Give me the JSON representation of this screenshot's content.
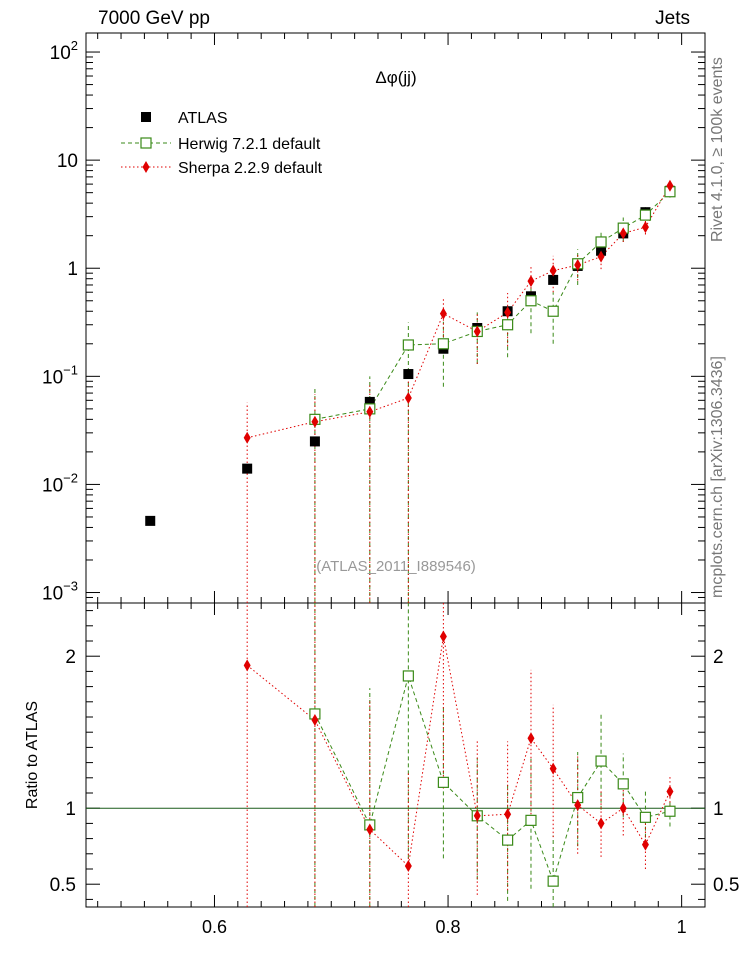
{
  "header": {
    "left": "7000 GeV pp",
    "right": "Jets"
  },
  "side_labels": {
    "top": "Rivet 4.1.0, ≥ 100k events",
    "bottom": "mcplots.cern.ch [arXiv:1306.3436]"
  },
  "colors": {
    "data": "#000000",
    "herwig": "#3a8a18",
    "sherpa": "#e00000",
    "reference": "#1a5c1a",
    "watermark": "#999999"
  },
  "chart_data": {
    "type": "scatter",
    "title": "Δφ(jj)",
    "watermark": "(ATLAS_2011_I889546)",
    "legend_position": "top-left",
    "xlim": [
      0.49,
      1.02
    ],
    "x_ticks": [
      0.6,
      0.8,
      1.0
    ],
    "x_tick_labels": [
      "0.6",
      "0.8",
      "1"
    ],
    "main": {
      "ylim": [
        0.0008,
        150
      ],
      "y_scale": "log",
      "y_tick_labels": [
        {
          "v": 100,
          "base": "10",
          "exp": "2"
        },
        {
          "v": 10,
          "base": "10",
          "exp": ""
        },
        {
          "v": 1,
          "base": "1",
          "exp": ""
        },
        {
          "v": 0.1,
          "base": "10",
          "exp": "−1"
        },
        {
          "v": 0.01,
          "base": "10",
          "exp": "−2"
        },
        {
          "v": 0.001,
          "base": "10",
          "exp": "−3"
        }
      ]
    },
    "ratio": {
      "ylabel": "Ratio to ATLAS",
      "ylim": [
        0.35,
        2.35
      ],
      "y_ticks": [
        0.5,
        1,
        2
      ],
      "y_tick_labels": [
        "0.5",
        "1",
        "2"
      ],
      "reference_line": 1
    },
    "series": [
      {
        "name": "ATLAS",
        "style": "data",
        "x": [
          0.545,
          0.628,
          0.686,
          0.733,
          0.766,
          0.796,
          0.825,
          0.851,
          0.871,
          0.89,
          0.911,
          0.931,
          0.95,
          0.969,
          0.99
        ],
        "y": [
          0.0046,
          0.014,
          0.025,
          0.058,
          0.105,
          0.18,
          0.28,
          0.4,
          0.55,
          0.78,
          1.05,
          1.45,
          2.1,
          3.3,
          5.2
        ]
      },
      {
        "name": "Herwig 7.2.1 default",
        "style": "herwig",
        "x": [
          0.686,
          0.733,
          0.766,
          0.796,
          0.825,
          0.851,
          0.871,
          0.89,
          0.911,
          0.931,
          0.95,
          0.969,
          0.99
        ],
        "y": [
          0.04,
          0.05,
          0.195,
          0.2,
          0.26,
          0.3,
          0.5,
          0.4,
          1.1,
          1.75,
          2.35,
          3.1,
          5.1
        ],
        "err_low": [
          0.04,
          0.05,
          0.195,
          0.12,
          0.13,
          0.15,
          0.25,
          0.2,
          0.4,
          0.5,
          0.6,
          0.6,
          0.6
        ],
        "err_high": [
          0.038,
          0.05,
          0.12,
          0.12,
          0.13,
          0.14,
          0.25,
          0.2,
          0.4,
          0.5,
          0.6,
          0.6,
          0.6
        ],
        "ratio": [
          1.62,
          0.89,
          1.87,
          1.17,
          0.95,
          0.79,
          0.92,
          0.52,
          1.07,
          1.31,
          1.16,
          0.94,
          0.98
        ],
        "ratio_err_low": [
          1.62,
          0.89,
          1.2,
          0.5,
          0.42,
          0.4,
          0.45,
          0.35,
          0.32,
          0.32,
          0.22,
          0.18,
          0.1
        ],
        "ratio_err_high": [
          1.2,
          0.9,
          1.2,
          0.5,
          0.38,
          0.38,
          0.42,
          0.3,
          0.3,
          0.32,
          0.2,
          0.18,
          0.1
        ]
      },
      {
        "name": "Sherpa 2.2.9 default",
        "style": "sherpa",
        "x": [
          0.628,
          0.686,
          0.733,
          0.766,
          0.796,
          0.825,
          0.851,
          0.871,
          0.89,
          0.911,
          0.931,
          0.95,
          0.969,
          0.99
        ],
        "y": [
          0.027,
          0.038,
          0.047,
          0.063,
          0.38,
          0.26,
          0.39,
          0.76,
          0.95,
          1.07,
          1.28,
          2.1,
          2.4,
          5.8
        ],
        "err_low": [
          0.027,
          0.038,
          0.047,
          0.063,
          0.2,
          0.13,
          0.2,
          0.3,
          0.35,
          0.3,
          0.3,
          0.35,
          0.35,
          0.4
        ],
        "err_high": [
          0.03,
          0.03,
          0.04,
          0.04,
          0.16,
          0.13,
          0.2,
          0.3,
          0.35,
          0.3,
          0.3,
          0.35,
          0.35,
          0.4
        ],
        "ratio": [
          1.94,
          1.58,
          0.86,
          0.62,
          2.13,
          0.95,
          0.96,
          1.46,
          1.26,
          1.02,
          0.9,
          1.0,
          0.76,
          1.11
        ],
        "ratio_err_low": [
          1.94,
          1.58,
          0.86,
          0.62,
          1.0,
          0.52,
          0.5,
          0.5,
          0.45,
          0.32,
          0.22,
          0.18,
          0.16,
          0.1
        ],
        "ratio_err_high": [
          1.2,
          1.2,
          0.86,
          0.62,
          0.5,
          0.5,
          0.48,
          0.45,
          0.42,
          0.32,
          0.22,
          0.18,
          0.16,
          0.1
        ]
      }
    ]
  }
}
